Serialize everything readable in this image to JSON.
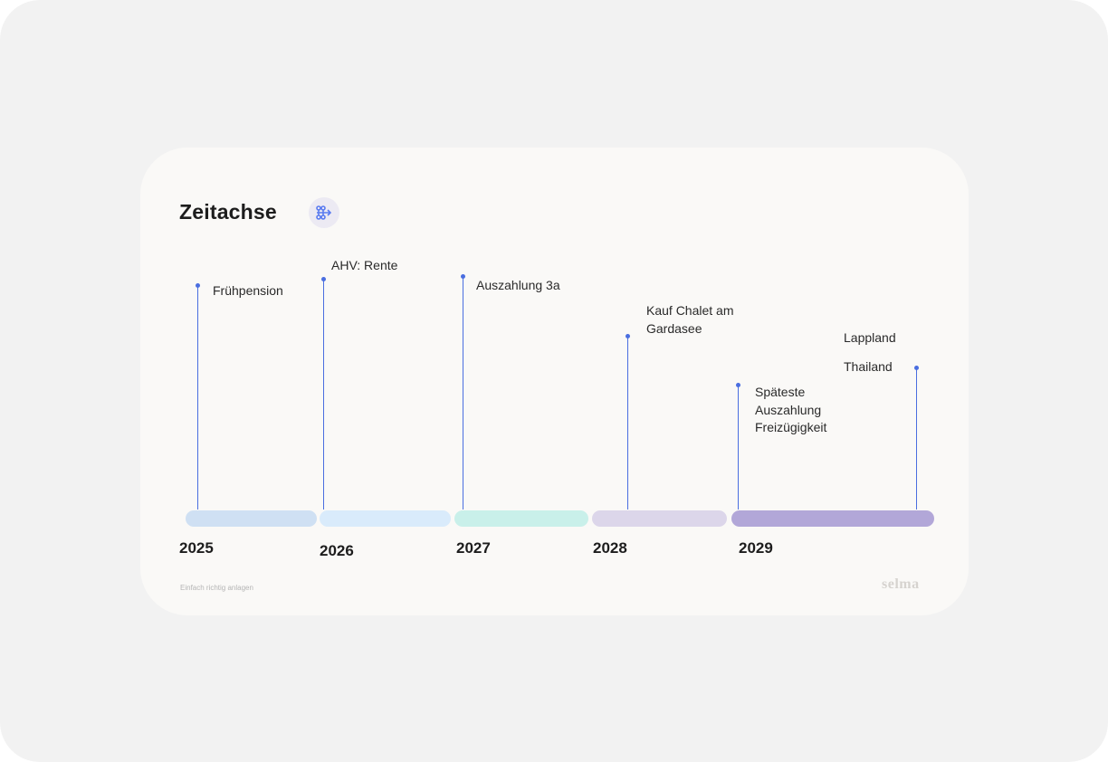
{
  "header": {
    "title": "Zeitachse"
  },
  "events": [
    {
      "labels": [
        "Frühpension"
      ]
    },
    {
      "labels": [
        "AHV: Rente"
      ]
    },
    {
      "labels": [
        "Auszahlung 3a"
      ]
    },
    {
      "labels": [
        "Kauf Chalet am Gardasee"
      ]
    },
    {
      "labels": [
        "Späteste Auszahlung Freizügigkeit"
      ]
    },
    {
      "labels": [
        "Lappland",
        "Thailand"
      ]
    }
  ],
  "years": [
    "2025",
    "2026",
    "2027",
    "2028",
    "2029"
  ],
  "footer": {
    "tagline": "Einfach richtig anlagen",
    "logo": "selma"
  }
}
